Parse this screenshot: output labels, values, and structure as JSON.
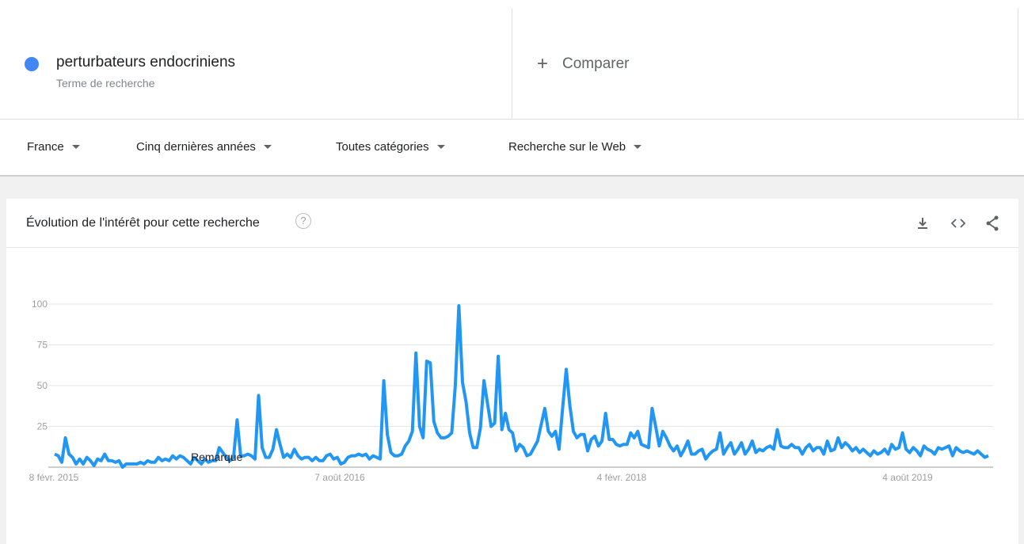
{
  "term": {
    "name": "perturbateurs endocriniens",
    "subtitle": "Terme de recherche",
    "color": "#4285f4"
  },
  "compare": {
    "label": "Comparer"
  },
  "filters": [
    "France",
    "Cinq dernières années",
    "Toutes catégories",
    "Recherche sur le Web"
  ],
  "card": {
    "title": "Évolution de l'intérêt pour cette recherche",
    "help": "?"
  },
  "icons": {
    "download": "download-icon",
    "embed": "embed-code-icon",
    "share": "share-icon"
  },
  "chart_data": {
    "type": "line",
    "ylim": [
      0,
      100
    ],
    "yticks": [
      25,
      50,
      75,
      100
    ],
    "xtick_labels": [
      "8 févr. 2015",
      "7 août 2016",
      "4 févr. 2018",
      "4 août 2019"
    ],
    "annotation": "Remarque",
    "line_color": "#2196f3",
    "series": [
      {
        "values": [
          8,
          7,
          3,
          18,
          8,
          6,
          2,
          5,
          2,
          6,
          4,
          1,
          5,
          4,
          8,
          4,
          4,
          3,
          4,
          0,
          2,
          2,
          2,
          2,
          3,
          2,
          4,
          3,
          3,
          6,
          4,
          5,
          4,
          7,
          5,
          7,
          6,
          4,
          2,
          6,
          4,
          2,
          5,
          3,
          4,
          4,
          12,
          9,
          6,
          4,
          6,
          29,
          7,
          7,
          8,
          7,
          5,
          44,
          12,
          6,
          6,
          11,
          23,
          14,
          6,
          8,
          6,
          11,
          7,
          5,
          6,
          6,
          4,
          6,
          4,
          4,
          7,
          8,
          5,
          6,
          2,
          3,
          6,
          7,
          7,
          8,
          7,
          8,
          5,
          7,
          6,
          5,
          53,
          20,
          9,
          7,
          7,
          8,
          13,
          16,
          22,
          70,
          25,
          18,
          65,
          64,
          28,
          21,
          18,
          18,
          19,
          21,
          50,
          99,
          52,
          40,
          21,
          12,
          12,
          24,
          53,
          39,
          25,
          27,
          68,
          23,
          33,
          23,
          21,
          10,
          14,
          12,
          7,
          8,
          12,
          16,
          26,
          36,
          22,
          19,
          22,
          11,
          36,
          60,
          38,
          22,
          18,
          20,
          20,
          10,
          17,
          19,
          13,
          16,
          33,
          17,
          17,
          14,
          13,
          14,
          14,
          21,
          18,
          22,
          14,
          13,
          12,
          36,
          25,
          13,
          22,
          18,
          13,
          10,
          13,
          7,
          11,
          16,
          8,
          8,
          10,
          11,
          5,
          8,
          10,
          11,
          21,
          8,
          12,
          15,
          8,
          11,
          15,
          8,
          11,
          16,
          9,
          11,
          10,
          12,
          13,
          11,
          23,
          13,
          12,
          12,
          14,
          12,
          12,
          8,
          12,
          14,
          10,
          12,
          12,
          8,
          16,
          10,
          11,
          18,
          12,
          15,
          13,
          10,
          12,
          9,
          11,
          9,
          7,
          10,
          8,
          9,
          11,
          8,
          14,
          11,
          12,
          21,
          11,
          9,
          12,
          10,
          7,
          13,
          11,
          10,
          8,
          12,
          11,
          12,
          13,
          7,
          12,
          10,
          9,
          10,
          9,
          8,
          10,
          8,
          6,
          7
        ]
      }
    ]
  }
}
